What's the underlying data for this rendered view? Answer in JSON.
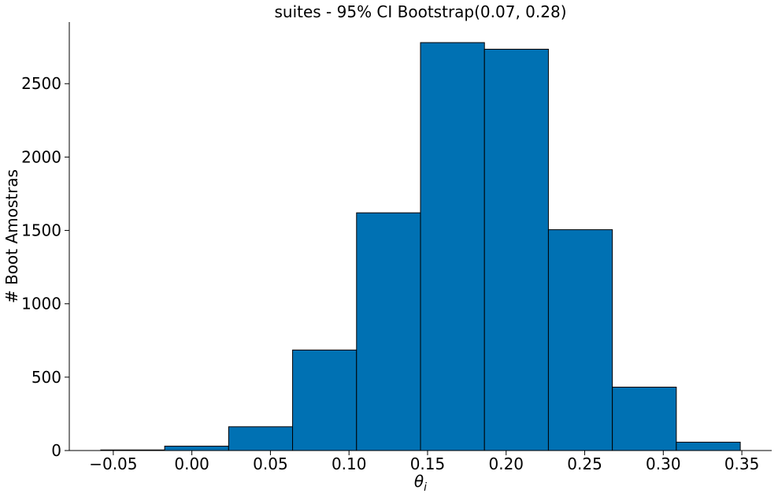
{
  "chart_data": {
    "type": "bar",
    "title": "suites - 95% CI Bootstrap(0.07, 0.28)",
    "xlabel_base": "θ",
    "xlabel_sub": "i",
    "ylabel": "# Boot Amostras",
    "bar_color": "#0071b3",
    "edge_color": "#000000",
    "bins": [
      {
        "x0": -0.058,
        "x1": -0.0173,
        "count": 4
      },
      {
        "x0": -0.0173,
        "x1": 0.0234,
        "count": 30
      },
      {
        "x0": 0.0234,
        "x1": 0.0641,
        "count": 162
      },
      {
        "x0": 0.0641,
        "x1": 0.1048,
        "count": 685
      },
      {
        "x0": 0.1048,
        "x1": 0.1455,
        "count": 1620
      },
      {
        "x0": 0.1455,
        "x1": 0.1862,
        "count": 2780
      },
      {
        "x0": 0.1862,
        "x1": 0.2269,
        "count": 2735
      },
      {
        "x0": 0.2269,
        "x1": 0.2676,
        "count": 1505
      },
      {
        "x0": 0.2676,
        "x1": 0.3083,
        "count": 432
      },
      {
        "x0": 0.3083,
        "x1": 0.349,
        "count": 57
      }
    ],
    "xlim": [
      -0.078,
      0.369
    ],
    "ylim": [
      0,
      2920
    ],
    "xticks": [
      -0.05,
      0.0,
      0.05,
      0.1,
      0.15,
      0.2,
      0.25,
      0.3,
      0.35
    ],
    "xtick_labels": [
      "−0.05",
      "0.00",
      "0.05",
      "0.10",
      "0.15",
      "0.20",
      "0.25",
      "0.30",
      "0.35"
    ],
    "yticks": [
      0,
      500,
      1000,
      1500,
      2000,
      2500
    ],
    "ytick_labels": [
      "0",
      "500",
      "1000",
      "1500",
      "2000",
      "2500"
    ],
    "grid": false,
    "legend": "none"
  }
}
